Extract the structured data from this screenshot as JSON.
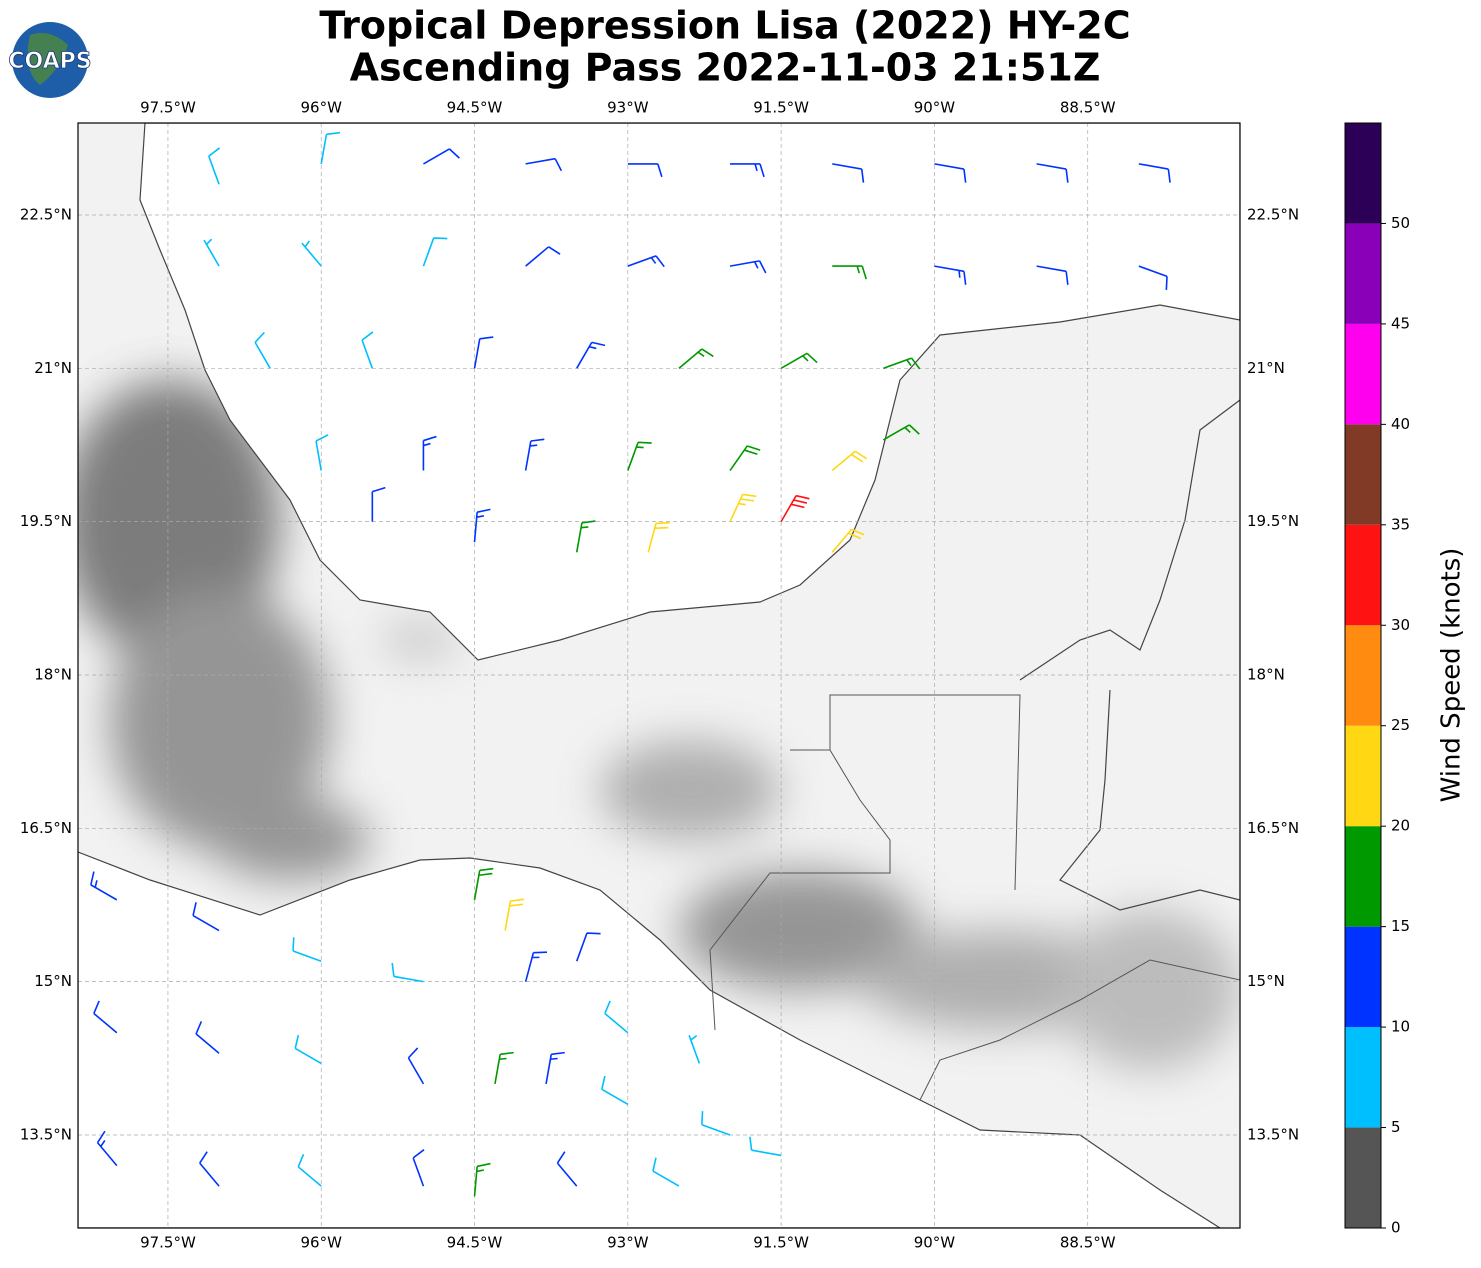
{
  "chart_data": {
    "type": "barbs",
    "title": "Tropical Depression Lisa (2022) HY-2C",
    "subtitle": "Ascending Pass 2022-11-03 21:51Z",
    "logo_text": "COAPS",
    "xlim": [
      -98.38,
      -87.01
    ],
    "ylim": [
      12.59,
      23.4
    ],
    "xticks": [
      {
        "value": -97.5,
        "label": "97.5°W"
      },
      {
        "value": -96,
        "label": "96°W"
      },
      {
        "value": -94.5,
        "label": "94.5°W"
      },
      {
        "value": -93,
        "label": "93°W"
      },
      {
        "value": -91.5,
        "label": "91.5°W"
      },
      {
        "value": -90,
        "label": "90°W"
      },
      {
        "value": -88.5,
        "label": "88.5°W"
      }
    ],
    "yticks": [
      {
        "value": 13.5,
        "label": "13.5°N"
      },
      {
        "value": 15,
        "label": "15°N"
      },
      {
        "value": 16.5,
        "label": "16.5°N"
      },
      {
        "value": 18,
        "label": "18°N"
      },
      {
        "value": 19.5,
        "label": "19.5°N"
      },
      {
        "value": 21,
        "label": "21°N"
      },
      {
        "value": 22.5,
        "label": "22.5°N"
      }
    ],
    "grid": true,
    "barbs": {
      "lon": [
        -97.0,
        -96.0,
        -95.0,
        -94.0,
        -93.0,
        -92.0,
        -91.0,
        -90.0,
        -89.0,
        -88.0,
        -97.0,
        -96.0,
        -95.0,
        -94.0,
        -93.0,
        -92.0,
        -91.0,
        -90.0,
        -89.0,
        -88.0,
        -96.5,
        -95.5,
        -94.5,
        -93.5,
        -92.5,
        -91.5,
        -90.5,
        -96.0,
        -95.0,
        -94.0,
        -93.0,
        -92.0,
        -91.0,
        -90.5,
        -95.5,
        -94.5,
        -93.5,
        -92.8,
        -92.0,
        -91.5,
        -91.0,
        -98.0,
        -97.0,
        -96.0,
        -95.0,
        -94.5,
        -94.2,
        -94.0,
        -93.5,
        -93.0,
        -92.3,
        -98.0,
        -97.0,
        -96.0,
        -95.0,
        -94.3,
        -93.8,
        -93.0,
        -92.0,
        -98.0,
        -97.0,
        -96.0,
        -95.0,
        -94.5,
        -93.5,
        -92.5,
        -91.5
      ],
      "lat": [
        22.8,
        23.0,
        23.0,
        23.0,
        23.0,
        23.0,
        23.0,
        23.0,
        23.0,
        23.0,
        22.0,
        22.0,
        22.0,
        22.0,
        22.0,
        22.0,
        22.0,
        22.0,
        22.0,
        22.0,
        21.0,
        21.0,
        21.0,
        21.0,
        21.0,
        21.0,
        21.0,
        20.0,
        20.0,
        20.0,
        20.0,
        20.0,
        20.0,
        20.3,
        19.5,
        19.3,
        19.2,
        19.2,
        19.5,
        19.5,
        19.2,
        15.8,
        15.5,
        15.2,
        15.0,
        15.8,
        15.5,
        15.0,
        15.2,
        14.5,
        14.2,
        14.5,
        14.3,
        14.2,
        14.0,
        14.0,
        14.0,
        13.8,
        13.5,
        13.2,
        13.0,
        13.0,
        13.0,
        12.9,
        13.0,
        13.0,
        13.3
      ],
      "speed": [
        8,
        8,
        10,
        12,
        12,
        13,
        12,
        12,
        12,
        12,
        7,
        6,
        9,
        12,
        13,
        14,
        16,
        13,
        12,
        12,
        8,
        8,
        12,
        13,
        15,
        17,
        17,
        9,
        13,
        13,
        17,
        18,
        21,
        17,
        12,
        13,
        17,
        21,
        24,
        31,
        22,
        13,
        12,
        8,
        8,
        18,
        21,
        14,
        12,
        8,
        7,
        12,
        12,
        8,
        11,
        17,
        13,
        9,
        8,
        13,
        11,
        9,
        11,
        17,
        10,
        9,
        8
      ],
      "direction": [
        340,
        10,
        60,
        80,
        90,
        90,
        100,
        100,
        100,
        100,
        330,
        320,
        20,
        50,
        70,
        80,
        90,
        100,
        100,
        110,
        330,
        340,
        10,
        30,
        50,
        60,
        70,
        350,
        0,
        10,
        20,
        35,
        50,
        60,
        0,
        5,
        10,
        15,
        25,
        30,
        40,
        300,
        300,
        290,
        280,
        10,
        10,
        15,
        20,
        310,
        340,
        310,
        310,
        300,
        330,
        10,
        10,
        300,
        290,
        320,
        320,
        310,
        340,
        5,
        320,
        300,
        280
      ]
    },
    "colorbar": {
      "label": "Wind Speed (knots)",
      "bounds": [
        0,
        5,
        10,
        15,
        20,
        25,
        30,
        35,
        40,
        45,
        50,
        55
      ],
      "colors": [
        "#555555",
        "#00bfff",
        "#0033ff",
        "#009900",
        "#ffd713",
        "#ff8c10",
        "#ff1212",
        "#803a26",
        "#ff00ee",
        "#8a00b8",
        "#2d0057"
      ],
      "ticks": [
        0,
        5,
        10,
        15,
        20,
        25,
        30,
        35,
        40,
        45,
        50
      ]
    }
  }
}
